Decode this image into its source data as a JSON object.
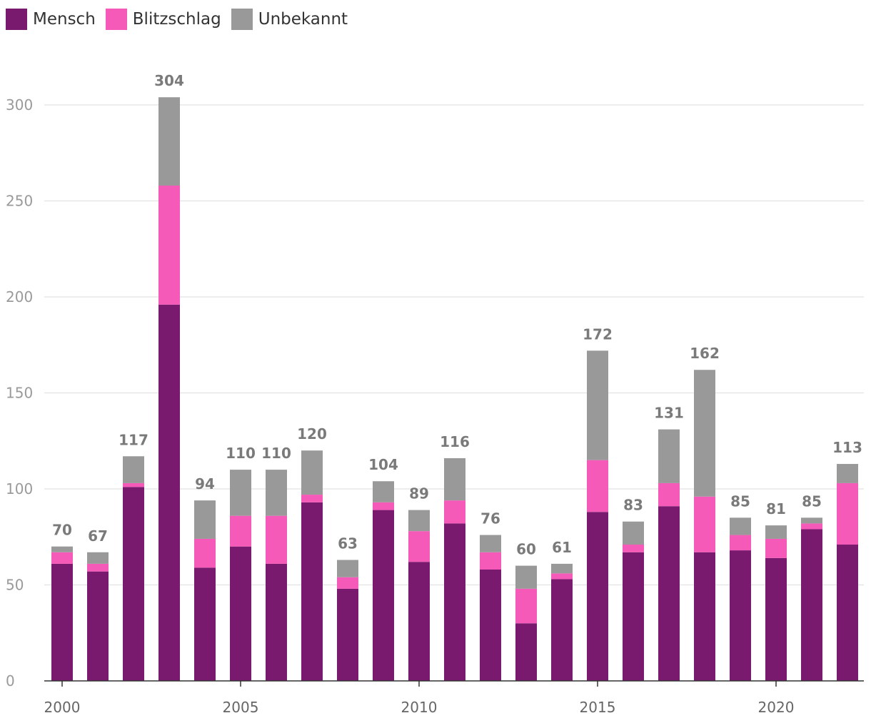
{
  "chart_data": {
    "type": "bar",
    "stacked": true,
    "title": "",
    "xlabel": "",
    "ylabel": "",
    "ylim": [
      0,
      300
    ],
    "yticks": [
      0,
      50,
      100,
      150,
      200,
      250,
      300
    ],
    "xticks": [
      "2000",
      "2005",
      "2010",
      "2015",
      "2020"
    ],
    "legend_position": "top-left",
    "categories": [
      "2000",
      "2001",
      "2002",
      "2003",
      "2004",
      "2005",
      "2006",
      "2007",
      "2008",
      "2009",
      "2010",
      "2011",
      "2012",
      "2013",
      "2014",
      "2015",
      "2016",
      "2017",
      "2018",
      "2019",
      "2020",
      "2021",
      "2022"
    ],
    "series": [
      {
        "name": "Mensch",
        "color": "#7a1a6e",
        "values": [
          61,
          57,
          101,
          196,
          59,
          70,
          61,
          93,
          48,
          89,
          62,
          82,
          58,
          30,
          53,
          88,
          67,
          91,
          67,
          68,
          64,
          79,
          71
        ]
      },
      {
        "name": "Blitzschlag",
        "color": "#f55ab8",
        "values": [
          6,
          4,
          2,
          62,
          15,
          16,
          25,
          4,
          6,
          4,
          16,
          12,
          9,
          18,
          3,
          27,
          4,
          12,
          29,
          8,
          10,
          3,
          32
        ]
      },
      {
        "name": "Unbekannt",
        "color": "#999999",
        "values": [
          3,
          6,
          14,
          46,
          20,
          24,
          24,
          23,
          9,
          11,
          11,
          22,
          9,
          12,
          5,
          57,
          12,
          28,
          66,
          9,
          7,
          3,
          10
        ]
      }
    ],
    "totals": [
      70,
      67,
      117,
      304,
      94,
      110,
      110,
      120,
      63,
      104,
      89,
      116,
      76,
      60,
      61,
      172,
      83,
      131,
      162,
      85,
      81,
      85,
      113
    ]
  }
}
